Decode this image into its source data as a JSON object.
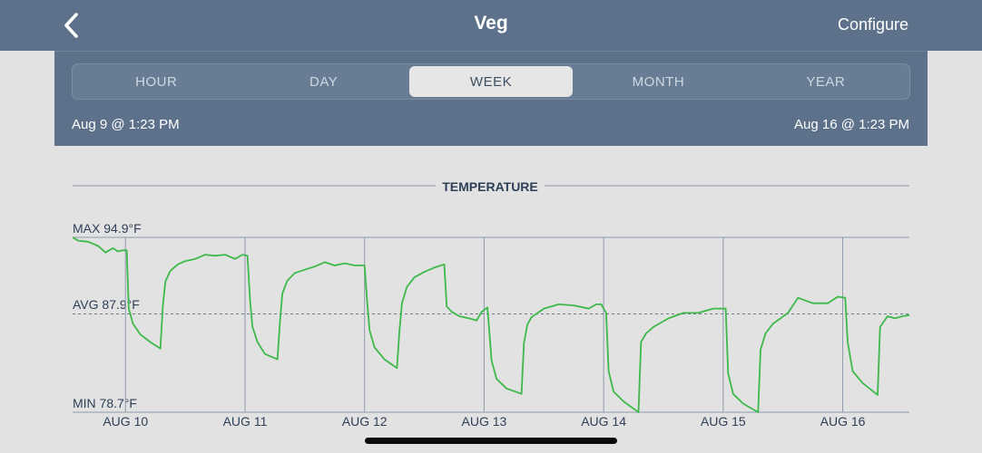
{
  "header": {
    "back_icon": "chevron-left-icon",
    "title": "Veg",
    "configure_label": "Configure"
  },
  "range": {
    "tabs": [
      {
        "label": "HOUR",
        "active": false
      },
      {
        "label": "DAY",
        "active": false
      },
      {
        "label": "WEEK",
        "active": true
      },
      {
        "label": "MONTH",
        "active": false
      },
      {
        "label": "YEAR",
        "active": false
      }
    ],
    "start": "Aug 9 @ 1:23 PM",
    "end": "Aug 16 @ 1:23 PM"
  },
  "colors": {
    "header_bg": "#5d728a",
    "page_bg": "#e2e2e2",
    "line": "#3db84a",
    "grid": "#8e9aab",
    "text": "#2e3f57"
  },
  "chart_data": {
    "type": "line",
    "title": "TEMPERATURE",
    "max_label": "MAX 94.9°F",
    "avg_label": "AVG 87.9°F",
    "min_label": "MIN 78.7°F",
    "ylim": [
      78.7,
      94.9
    ],
    "avg": 87.9,
    "xlim": [
      "Aug 9 13:23",
      "Aug 16 13:23"
    ],
    "x_ticks": [
      "AUG 10",
      "AUG 11",
      "AUG 12",
      "AUG 13",
      "AUG 14",
      "AUG 15",
      "AUG 16"
    ],
    "grid": true,
    "series": [
      {
        "x": [
          "Aug 9 13:23",
          "Aug 9 14:30",
          "Aug 9 16:30",
          "Aug 9 18:30",
          "Aug 9 20:00",
          "Aug 9 21:30",
          "Aug 9 22:30",
          "Aug 9 23:30",
          "Aug 10 00:15",
          "Aug 10 00:40",
          "Aug 10 01:30",
          "Aug 10 03:00",
          "Aug 10 05:00",
          "Aug 10 07:00",
          "Aug 10 07:30",
          "Aug 10 08:00",
          "Aug 10 09:00",
          "Aug 10 10:30",
          "Aug 10 12:00",
          "Aug 10 14:00",
          "Aug 10 16:00",
          "Aug 10 18:00",
          "Aug 10 20:00",
          "Aug 10 22:00",
          "Aug 10 23:30",
          "Aug 11 00:30",
          "Aug 11 01:00",
          "Aug 11 01:30",
          "Aug 11 02:30",
          "Aug 11 04:00",
          "Aug 11 06:30",
          "Aug 11 07:00",
          "Aug 11 07:30",
          "Aug 11 08:30",
          "Aug 11 10:00",
          "Aug 11 12:00",
          "Aug 11 14:00",
          "Aug 11 16:00",
          "Aug 11 18:00",
          "Aug 11 20:00",
          "Aug 11 22:00",
          "Aug 12 00:00",
          "Aug 12 00:30",
          "Aug 12 01:00",
          "Aug 12 02:00",
          "Aug 12 04:00",
          "Aug 12 06:30",
          "Aug 12 07:00",
          "Aug 12 07:30",
          "Aug 12 08:30",
          "Aug 12 10:00",
          "Aug 12 12:00",
          "Aug 12 14:00",
          "Aug 12 16:00",
          "Aug 12 16:30",
          "Aug 12 17:30",
          "Aug 12 19:00",
          "Aug 12 21:00",
          "Aug 12 22:30",
          "Aug 12 23:30",
          "Aug 13 00:40",
          "Aug 13 01:30",
          "Aug 13 02:30",
          "Aug 13 04:30",
          "Aug 13 07:30",
          "Aug 13 08:00",
          "Aug 13 08:40",
          "Aug 13 09:30",
          "Aug 13 12:00",
          "Aug 13 15:00",
          "Aug 13 18:00",
          "Aug 13 21:00",
          "Aug 13 22:30",
          "Aug 13 23:30",
          "Aug 14 00:30",
          "Aug 14 01:00",
          "Aug 14 02:00",
          "Aug 14 04:00",
          "Aug 14 07:00",
          "Aug 14 07:30",
          "Aug 14 08:30",
          "Aug 14 10:00",
          "Aug 14 13:00",
          "Aug 14 16:00",
          "Aug 14 19:00",
          "Aug 14 22:00",
          "Aug 14 23:30",
          "Aug 15 00:30",
          "Aug 15 01:00",
          "Aug 15 02:00",
          "Aug 15 04:00",
          "Aug 15 07:00",
          "Aug 15 07:30",
          "Aug 15 08:30",
          "Aug 15 10:00",
          "Aug 15 13:00",
          "Aug 15 15:00",
          "Aug 15 18:00",
          "Aug 15 21:00",
          "Aug 15 23:00",
          "Aug 16 00:30",
          "Aug 16 01:00",
          "Aug 16 02:00",
          "Aug 16 04:00",
          "Aug 16 07:00",
          "Aug 16 07:30",
          "Aug 16 09:00",
          "Aug 16 10:30",
          "Aug 16 12:00",
          "Aug 16 13:23"
        ],
        "values": [
          94.9,
          94.6,
          94.5,
          94.1,
          93.5,
          93.9,
          93.6,
          93.7,
          93.7,
          88.3,
          86.9,
          85.9,
          85.2,
          84.6,
          88.5,
          90.8,
          91.8,
          92.4,
          92.7,
          92.9,
          93.3,
          93.2,
          93.3,
          92.9,
          93.3,
          93.2,
          89.1,
          86.6,
          85.2,
          84.1,
          83.6,
          87.0,
          89.7,
          90.9,
          91.6,
          91.9,
          92.2,
          92.6,
          92.3,
          92.5,
          92.3,
          92.3,
          89.1,
          86.3,
          84.7,
          83.6,
          82.8,
          86.2,
          88.8,
          90.3,
          91.2,
          91.7,
          92.1,
          92.4,
          88.5,
          88.0,
          87.6,
          87.4,
          87.2,
          88.0,
          88.4,
          83.5,
          81.8,
          80.9,
          80.4,
          85.1,
          86.8,
          87.5,
          88.3,
          88.7,
          88.6,
          88.3,
          88.7,
          88.7,
          87.9,
          82.5,
          80.6,
          79.7,
          78.7,
          85.2,
          86.0,
          86.6,
          87.4,
          87.9,
          87.9,
          88.3,
          88.3,
          88.3,
          82.3,
          80.4,
          79.5,
          78.7,
          84.5,
          86.0,
          86.9,
          87.9,
          89.3,
          88.8,
          88.8,
          89.4,
          89.3,
          85.2,
          82.5,
          81.4,
          80.3,
          86.6,
          87.6,
          87.4,
          87.6,
          87.7
        ]
      }
    ]
  }
}
